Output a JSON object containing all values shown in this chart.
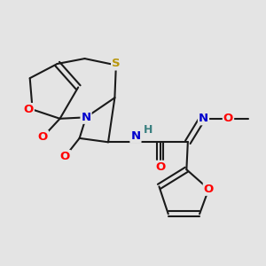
{
  "bg_color": "#e4e4e4",
  "bond_color": "#1a1a1a",
  "bond_width": 1.5,
  "atom_colors": {
    "O": "#ff0000",
    "N": "#0000cd",
    "S": "#b8960c",
    "H": "#3a8080",
    "C": "#1a1a1a"
  },
  "fs": 9.5
}
